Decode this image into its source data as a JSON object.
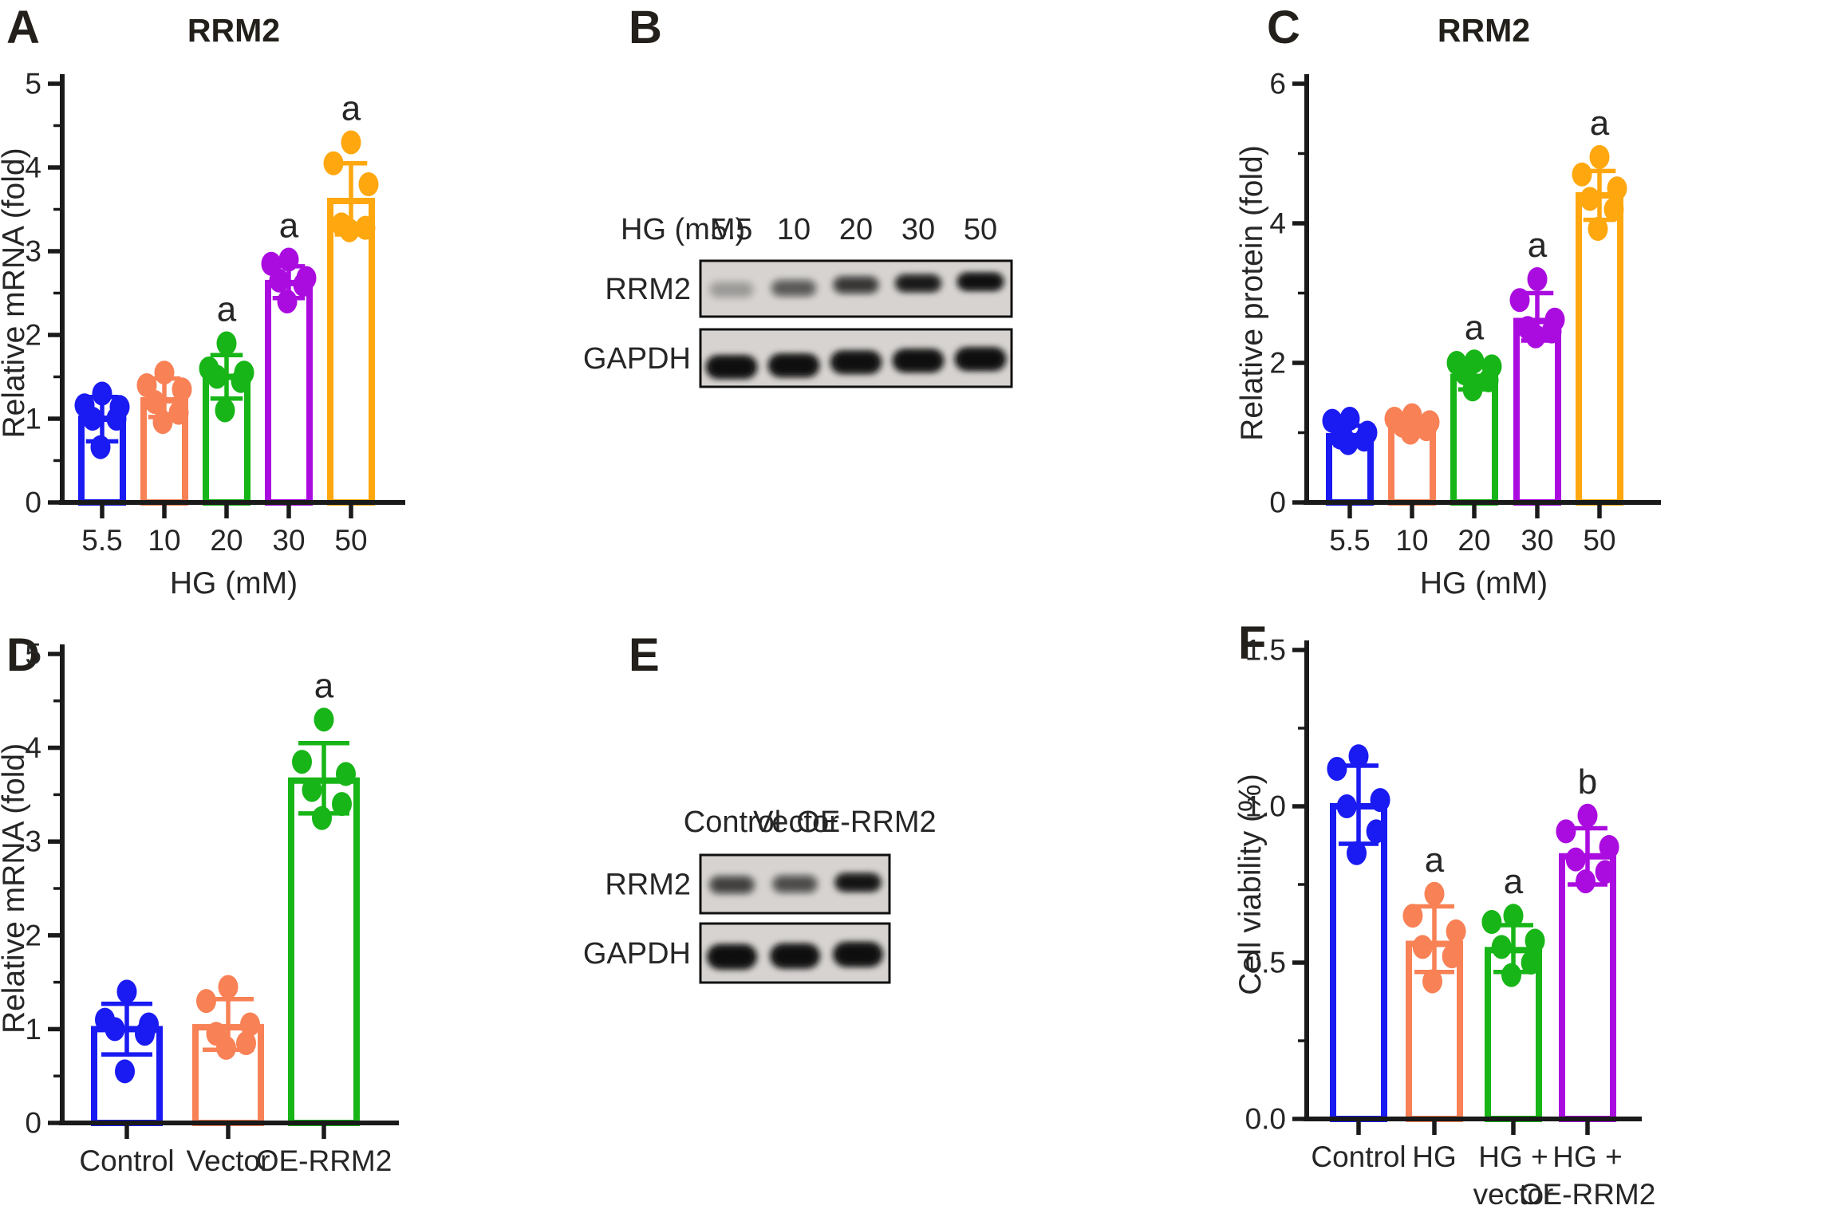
{
  "figure": {
    "panels": [
      {
        "id": "A",
        "label": "A"
      },
      {
        "id": "B",
        "label": "B"
      },
      {
        "id": "C",
        "label": "C"
      },
      {
        "id": "D",
        "label": "D"
      },
      {
        "id": "E",
        "label": "E"
      },
      {
        "id": "F",
        "label": "F"
      }
    ]
  },
  "colors": {
    "blue": "#1a1af2",
    "salmon": "#f88156",
    "green": "#17b517",
    "purple": "#aa0ce0",
    "orange": "#ffa70f",
    "axis": "#1a1a1a",
    "text": "#262626",
    "blot_bg": "#d6d3d0",
    "band": "#0d0d0d"
  },
  "chart_data": [
    {
      "id": "A",
      "type": "bar",
      "title": "RRM2",
      "ylabel": "Relative mRNA (fold)",
      "xlabel": "HG (mM)",
      "ylim": [
        0,
        5
      ],
      "yticks": [
        0,
        1,
        2,
        3,
        4,
        5
      ],
      "ytick_labels": [
        "0",
        "1",
        "2",
        "3",
        "4",
        "5"
      ],
      "minor_step": 0.5,
      "grid": false,
      "legend": "none",
      "categories": [
        "5.5",
        "10",
        "20",
        "30",
        "50"
      ],
      "values": [
        1.0,
        1.22,
        1.5,
        2.62,
        3.6
      ],
      "error_low": [
        0.73,
        1.02,
        1.24,
        2.44,
        3.2
      ],
      "error_high": [
        1.26,
        1.48,
        1.76,
        2.82,
        4.05
      ],
      "dots": [
        [
          1.3,
          1.16,
          1.14,
          1.0,
          1.0,
          0.66
        ],
        [
          1.55,
          1.4,
          1.35,
          1.2,
          1.07,
          0.96
        ],
        [
          1.9,
          1.6,
          1.55,
          1.5,
          1.45,
          1.1
        ],
        [
          2.9,
          2.85,
          2.68,
          2.65,
          2.6,
          2.4
        ],
        [
          4.3,
          4.05,
          3.8,
          3.32,
          3.28,
          3.25
        ]
      ],
      "sig": [
        "",
        "",
        "a",
        "a",
        "a"
      ],
      "bar_colors": [
        "#1a1af2",
        "#f88156",
        "#17b517",
        "#aa0ce0",
        "#ffa70f"
      ]
    },
    {
      "id": "C",
      "type": "bar",
      "title": "RRM2",
      "ylabel": "Relative protein (fold)",
      "xlabel": "HG (mM)",
      "ylim": [
        0,
        6
      ],
      "yticks": [
        0,
        2,
        4,
        6
      ],
      "ytick_labels": [
        "0",
        "2",
        "4",
        "6"
      ],
      "minor_step": 1,
      "grid": false,
      "legend": "none",
      "categories": [
        "5.5",
        "10",
        "20",
        "30",
        "50"
      ],
      "values": [
        0.95,
        1.1,
        1.8,
        2.6,
        4.4
      ],
      "error_low": [
        0.82,
        1.0,
        1.62,
        2.32,
        4.05
      ],
      "error_high": [
        1.1,
        1.2,
        2.0,
        3.0,
        4.75
      ],
      "dots": [
        [
          1.2,
          1.17,
          1.0,
          0.93,
          0.9,
          0.85
        ],
        [
          1.25,
          1.2,
          1.15,
          1.1,
          1.05,
          1.0
        ],
        [
          2.02,
          2.0,
          1.95,
          1.85,
          1.75,
          1.62
        ],
        [
          3.2,
          2.9,
          2.62,
          2.5,
          2.45,
          2.38
        ],
        [
          4.95,
          4.7,
          4.5,
          4.35,
          4.2,
          3.92
        ]
      ],
      "sig": [
        "",
        "",
        "a",
        "a",
        "a"
      ],
      "bar_colors": [
        "#1a1af2",
        "#f88156",
        "#17b517",
        "#aa0ce0",
        "#ffa70f"
      ]
    },
    {
      "id": "D",
      "type": "bar",
      "title": "",
      "ylabel": "Relative mRNA (fold)",
      "xlabel": "",
      "ylim": [
        0,
        5
      ],
      "yticks": [
        0,
        1,
        2,
        3,
        4,
        5
      ],
      "ytick_labels": [
        "0",
        "1",
        "2",
        "3",
        "4",
        "5"
      ],
      "minor_step": 0.5,
      "grid": false,
      "legend": "none",
      "categories": [
        "Control",
        "Vector",
        "OE-RRM2"
      ],
      "values": [
        1.0,
        1.02,
        3.65
      ],
      "error_low": [
        0.73,
        0.78,
        3.3
      ],
      "error_high": [
        1.27,
        1.32,
        4.05
      ],
      "dots": [
        [
          1.4,
          1.1,
          1.05,
          1.0,
          0.95,
          0.55
        ],
        [
          1.45,
          1.3,
          1.05,
          0.95,
          0.85,
          0.8
        ],
        [
          4.3,
          3.85,
          3.72,
          3.55,
          3.4,
          3.25
        ]
      ],
      "sig": [
        "",
        "",
        "a"
      ],
      "bar_colors": [
        "#1a1af2",
        "#f88156",
        "#17b517"
      ]
    },
    {
      "id": "F",
      "type": "bar",
      "title": "",
      "ylabel": "Cell viability (%)",
      "xlabel": "",
      "ylim": [
        0,
        1.5
      ],
      "yticks": [
        0,
        0.5,
        1,
        1.5
      ],
      "ytick_labels": [
        "0.0",
        "0.5",
        "1.0",
        "1.5"
      ],
      "minor_step": 0.25,
      "grid": false,
      "legend": "none",
      "categories": [
        "Control",
        "HG",
        "HG +\nvector",
        "HG +\nOE-RRM2"
      ],
      "values": [
        1.0,
        0.56,
        0.54,
        0.84
      ],
      "error_low": [
        0.88,
        0.47,
        0.47,
        0.75
      ],
      "error_high": [
        1.13,
        0.68,
        0.62,
        0.93
      ],
      "dots": [
        [
          1.16,
          1.12,
          1.02,
          1.0,
          0.92,
          0.85
        ],
        [
          0.72,
          0.65,
          0.6,
          0.55,
          0.52,
          0.44
        ],
        [
          0.65,
          0.63,
          0.57,
          0.55,
          0.5,
          0.46
        ],
        [
          0.97,
          0.92,
          0.87,
          0.83,
          0.79,
          0.76
        ]
      ],
      "sig": [
        "",
        "a",
        "a",
        "b"
      ],
      "bar_colors": [
        "#1a1af2",
        "#f88156",
        "#17b517",
        "#aa0ce0"
      ]
    }
  ],
  "blots": [
    {
      "id": "B",
      "header": "HG (mM)",
      "lanes": [
        "5.5",
        "10",
        "20",
        "30",
        "50"
      ],
      "rows": [
        {
          "name": "RRM2",
          "intensities": [
            0.16,
            0.4,
            0.58,
            0.8,
            0.95
          ]
        },
        {
          "name": "GAPDH",
          "intensities": [
            0.96,
            0.95,
            0.93,
            0.95,
            0.96
          ]
        }
      ]
    },
    {
      "id": "E",
      "header": "",
      "lanes": [
        "Control",
        "Vector",
        "OE-RRM2"
      ],
      "rows": [
        {
          "name": "RRM2",
          "intensities": [
            0.52,
            0.46,
            0.86
          ]
        },
        {
          "name": "GAPDH",
          "intensities": [
            0.96,
            0.94,
            0.95
          ]
        }
      ]
    }
  ]
}
